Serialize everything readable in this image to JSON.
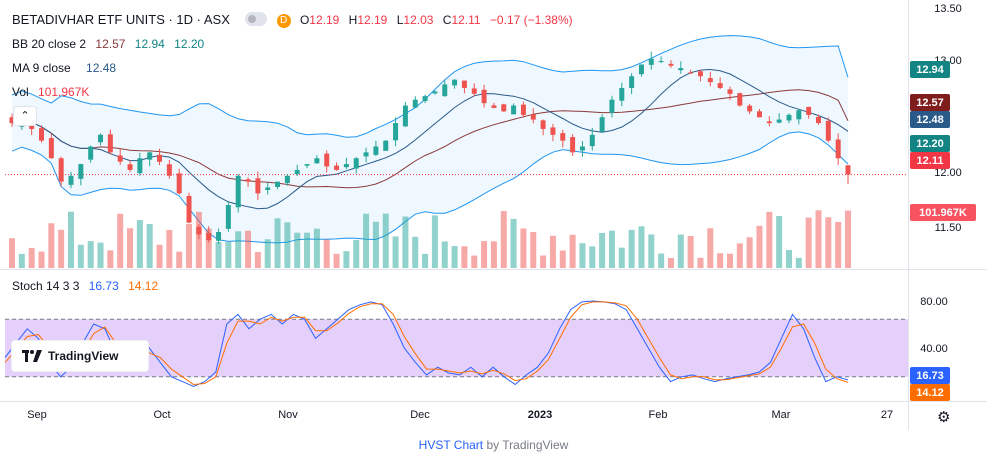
{
  "header": {
    "title": "BETADIVHAR ETF UNITS · 1D · ASX",
    "badge": "D",
    "ohlc": {
      "o_label": "O",
      "o": "12.19",
      "h_label": "H",
      "h": "12.19",
      "l_label": "L",
      "l": "12.03",
      "c_label": "C",
      "c": "12.11",
      "change": "−0.17 (−1.38%)"
    }
  },
  "legends": {
    "bb": {
      "label": "BB 20 close 2",
      "basis": "12.57",
      "upper": "12.94",
      "lower": "12.20"
    },
    "ma": {
      "label": "MA 9 close",
      "value": "12.48"
    },
    "vol": {
      "label": "Vol",
      "value": "101.967K"
    },
    "stoch": {
      "label": "Stoch 14 3 3",
      "k": "16.73",
      "d": "14.12"
    }
  },
  "price_axis": {
    "ticks": [
      "13.50",
      "13.00",
      "12.00",
      "11.50"
    ],
    "badges": [
      {
        "text": "12.94",
        "color": "#138484",
        "value": 12.94
      },
      {
        "text": "12.57",
        "color": "#7f1d1d",
        "value": 12.57
      },
      {
        "text": "12.48",
        "color": "#2a5a8a",
        "value": 12.48
      },
      {
        "text": "12.20",
        "color": "#138484",
        "value": 12.2
      },
      {
        "text": "12.11",
        "color": "#f23645",
        "value": 12.11
      },
      {
        "text": "101.967K",
        "color": "#f7525f",
        "value": 101.967
      }
    ]
  },
  "stoch_axis": {
    "ticks": [
      "80.00",
      "40.00"
    ],
    "badges": [
      {
        "text": "16.73",
        "color": "#2962ff",
        "value": 16.73
      },
      {
        "text": "14.12",
        "color": "#ff6d00",
        "value": 14.12
      }
    ]
  },
  "time_axis": {
    "labels": [
      {
        "text": "Sep",
        "bold": false
      },
      {
        "text": "Oct",
        "bold": false
      },
      {
        "text": "Nov",
        "bold": false
      },
      {
        "text": "Dec",
        "bold": false
      },
      {
        "text": "2023",
        "bold": true
      },
      {
        "text": "Feb",
        "bold": false
      },
      {
        "text": "Mar",
        "bold": false
      },
      {
        "text": "27",
        "bold": false
      }
    ]
  },
  "branding": {
    "logo_text": "TradingView",
    "footer_link": "HVST Chart",
    "footer_by": "by TradingView"
  },
  "icons": {
    "collapse": "chevron-up-icon",
    "settings": "gear-icon",
    "logo": "tradingview-logo-icon"
  },
  "colors": {
    "up": "#26a69a",
    "down": "#ef5350",
    "bb_band": "#2196f3",
    "bb_basis": "#8b3a3a",
    "ma": "#2a5a8a",
    "stoch_k": "#2962ff",
    "stoch_d": "#ff6d00",
    "stoch_fill": "#e1c8fb"
  },
  "chart_data": [
    {
      "type": "candlestick",
      "title": "BETADIVHAR ETF UNITS · 1D · ASX",
      "x_range": [
        "2022-08-24",
        "2023-03-17"
      ],
      "ylim": [
        11.33,
        13.55
      ],
      "x_ticks": [
        "Sep",
        "Oct",
        "Nov",
        "Dec",
        "2023",
        "Feb",
        "Mar",
        "27"
      ],
      "y_ticks": [
        13.5,
        13.0,
        12.0,
        11.5
      ],
      "series": [
        {
          "name": "BB 20 close 2 upper",
          "last": 12.94
        },
        {
          "name": "BB 20 close 2 basis",
          "last": 12.57
        },
        {
          "name": "BB 20 close 2 lower",
          "last": 12.2
        },
        {
          "name": "MA 9 close",
          "last": 12.48
        }
      ],
      "close_path": [
        12.55,
        12.62,
        12.5,
        12.4,
        12.25,
        12.05,
        12.1,
        12.2,
        12.35,
        12.45,
        12.3,
        12.22,
        12.15,
        12.25,
        12.3,
        12.22,
        12.1,
        11.95,
        11.7,
        11.6,
        11.55,
        11.62,
        11.85,
        12.1,
        12.05,
        11.95,
        12.0,
        12.05,
        12.1,
        12.15,
        12.2,
        12.25,
        12.18,
        12.15,
        12.2,
        12.25,
        12.3,
        12.35,
        12.4,
        12.55,
        12.7,
        12.75,
        12.78,
        12.82,
        12.88,
        12.92,
        12.85,
        12.8,
        12.72,
        12.68,
        12.65,
        12.7,
        12.62,
        12.58,
        12.5,
        12.45,
        12.4,
        12.3,
        12.35,
        12.45,
        12.6,
        12.75,
        12.85,
        12.95,
        13.05,
        13.1,
        13.08,
        13.04,
        13.02,
        12.98,
        12.95,
        12.9,
        12.85,
        12.8,
        12.7,
        12.65,
        12.6,
        12.55,
        12.58,
        12.62,
        12.66,
        12.62,
        12.55,
        12.4,
        12.25,
        12.11
      ],
      "last_price": 12.11,
      "last_volume_k": 101.967
    },
    {
      "type": "line",
      "title": "Stoch 14 3 3",
      "ylim": [
        0,
        100
      ],
      "y_ticks": [
        80,
        40
      ],
      "band": [
        20,
        80
      ],
      "series": [
        {
          "name": "%K",
          "values": [
            40,
            55,
            70,
            60,
            35,
            20,
            30,
            55,
            75,
            70,
            45,
            35,
            40,
            50,
            35,
            20,
            15,
            10,
            15,
            25,
            75,
            85,
            70,
            80,
            85,
            75,
            85,
            80,
            60,
            70,
            80,
            90,
            95,
            98,
            95,
            75,
            50,
            35,
            22,
            30,
            24,
            22,
            30,
            20,
            30,
            20,
            12,
            22,
            30,
            45,
            70,
            90,
            98,
            99,
            98,
            96,
            90,
            70,
            50,
            30,
            15,
            20,
            22,
            18,
            15,
            18,
            20,
            22,
            25,
            35,
            60,
            85,
            70,
            40,
            15,
            20,
            16.73
          ]
        },
        {
          "name": "%D",
          "values": [
            35,
            48,
            62,
            64,
            50,
            30,
            28,
            45,
            65,
            72,
            55,
            40,
            38,
            45,
            40,
            28,
            20,
            12,
            13,
            20,
            55,
            78,
            78,
            75,
            82,
            78,
            82,
            82,
            68,
            68,
            76,
            86,
            93,
            96,
            96,
            85,
            62,
            44,
            28,
            28,
            26,
            24,
            26,
            23,
            27,
            23,
            16,
            18,
            26,
            38,
            60,
            82,
            95,
            98,
            98,
            97,
            94,
            80,
            60,
            40,
            22,
            18,
            20,
            20,
            17,
            17,
            19,
            21,
            23,
            30,
            50,
            72,
            75,
            55,
            28,
            18,
            14.12
          ]
        }
      ]
    }
  ]
}
